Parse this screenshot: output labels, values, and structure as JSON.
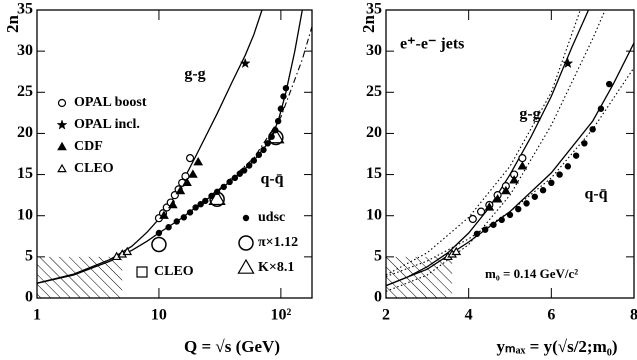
{
  "chart_data": [
    {
      "type": "scatter",
      "xscale": "log",
      "color": "#000000",
      "legend": true,
      "y_label": "2n",
      "x_label": "Q = √s (GeV)",
      "xlim": [
        1,
        180
      ],
      "ylim": [
        0,
        35
      ],
      "xticks": [
        1,
        10,
        {
          "value": 100,
          "label": "10²"
        }
      ],
      "yticks": [
        0,
        5,
        10,
        15,
        20,
        25,
        30,
        35
      ],
      "regions": [
        {
          "label": "CLEO",
          "x": [
            1,
            5
          ],
          "y": [
            0,
            5
          ]
        }
      ],
      "series": [
        {
          "name": "g-g",
          "line": "solid",
          "x": [
            1,
            2,
            4,
            6,
            8,
            10,
            12,
            15,
            20,
            30,
            40,
            51,
            60,
            70
          ],
          "values": [
            1.8,
            2.9,
            4.7,
            6.3,
            8,
            9.6,
            11.2,
            13.6,
            17.2,
            22.4,
            26.3,
            29.5,
            32,
            35
          ]
        },
        {
          "name": "q-q̄",
          "line": "solid",
          "x": [
            1,
            2,
            4,
            6,
            8,
            10,
            15,
            20,
            30,
            45,
            60,
            80,
            95,
            110,
            130,
            150
          ],
          "values": [
            1.8,
            2.8,
            4.5,
            5.8,
            6.9,
            7.9,
            9.6,
            11,
            12.9,
            15,
            16.7,
            19,
            21.5,
            25,
            30,
            35
          ]
        },
        {
          "line": "dashdot",
          "x": [
            30,
            60,
            100,
            150,
            180
          ],
          "values": [
            13,
            17,
            22,
            29,
            33
          ]
        },
        {
          "name": "OPAL boost",
          "marker": "circle-open",
          "x": [
            10,
            10.8,
            11.6,
            12.5,
            13.5,
            14.5,
            15.5,
            16.5,
            18
          ],
          "values": [
            9.7,
            10.3,
            11,
            11.6,
            12.5,
            13.2,
            14,
            14.8,
            17
          ]
        },
        {
          "name": "OPAL incl.",
          "marker": "star",
          "x": [
            51
          ],
          "values": [
            28.5
          ]
        },
        {
          "name": "CDF",
          "marker": "triangle",
          "x": [
            11,
            13,
            15,
            17,
            19,
            21
          ],
          "values": [
            10,
            11.3,
            13,
            14,
            15,
            16.5
          ]
        },
        {
          "name": "CLEO",
          "marker": "triangle-open",
          "x": [
            4.5,
            5,
            5.5
          ],
          "values": [
            5,
            5.3,
            5.6
          ]
        },
        {
          "name": "udsc",
          "marker": "dot",
          "x": [
            10,
            12,
            14,
            16,
            18,
            20,
            22,
            24,
            27,
            30,
            34,
            38,
            42,
            46,
            50,
            55,
            60,
            66,
            72,
            78,
            84,
            90,
            95,
            100,
            105,
            110
          ],
          "values": [
            7.9,
            8.6,
            9.3,
            9.8,
            10.4,
            11,
            11.4,
            11.8,
            12.4,
            12.9,
            13.5,
            14.1,
            14.6,
            15.1,
            15.5,
            16.1,
            16.7,
            17.4,
            18,
            18.8,
            19.6,
            20.4,
            21.5,
            23,
            24.5,
            25.5
          ]
        },
        {
          "name": "π×1.12",
          "marker": "circle-large",
          "x": [
            10,
            30,
            91
          ],
          "values": [
            6.5,
            12,
            19.5
          ]
        },
        {
          "name": "K×8.1",
          "marker": "triangle-large",
          "x": [
            30,
            91
          ],
          "values": [
            12,
            19.5
          ]
        }
      ]
    },
    {
      "type": "scatter",
      "color": "#000000",
      "legend": false,
      "y_label": "2n",
      "x_label": "yₘₐₓ = y(√s/2;m₀)",
      "annotations": [
        "e⁺-e⁻ jets",
        "m₀ = 0.14 GeV/c²"
      ],
      "xlim": [
        2,
        8
      ],
      "ylim": [
        0,
        35
      ],
      "xticks": [
        2,
        4,
        6,
        8
      ],
      "yticks": [
        0,
        5,
        10,
        15,
        20,
        25,
        30,
        35
      ],
      "regions": [
        {
          "x": [
            2,
            3.6
          ],
          "y": [
            0,
            5
          ]
        }
      ],
      "series": [
        {
          "name": "g-g",
          "line": "solid",
          "x": [
            2,
            2.5,
            3,
            3.5,
            4,
            4.5,
            5,
            5.5,
            6,
            6.5,
            6.9
          ],
          "values": [
            1.5,
            2.5,
            3.8,
            5.5,
            7.9,
            11,
            15,
            19.5,
            24.5,
            30.5,
            35
          ]
        },
        {
          "line": "dotted",
          "x": [
            2,
            3,
            4,
            5,
            6,
            6.7
          ],
          "values": [
            2.8,
            5.5,
            9.8,
            16,
            25,
            35
          ]
        },
        {
          "line": "dotted",
          "x": [
            2,
            3,
            4,
            5,
            6,
            7,
            7.3
          ],
          "values": [
            0.8,
            2.8,
            6.5,
            12.5,
            21,
            31.5,
            35
          ]
        },
        {
          "name": "q-q̄",
          "line": "solid",
          "x": [
            2,
            3,
            4,
            5,
            6,
            7,
            7.5,
            8
          ],
          "values": [
            1.5,
            3.5,
            6.8,
            10.5,
            15.2,
            21.5,
            26,
            31
          ]
        },
        {
          "line": "dotted",
          "x": [
            2,
            3,
            4,
            5,
            6,
            7,
            8
          ],
          "values": [
            2.6,
            4.5,
            7.2,
            10.5,
            14.6,
            20.5,
            28
          ]
        },
        {
          "marker": "circle-open",
          "x": [
            4.1,
            4.3,
            4.5,
            4.7,
            4.9,
            5.1,
            5.3
          ],
          "values": [
            9.6,
            10.5,
            11.3,
            12.5,
            13.6,
            15,
            17
          ]
        },
        {
          "marker": "star",
          "x": [
            6.4
          ],
          "values": [
            28.5
          ]
        },
        {
          "marker": "triangle",
          "x": [
            4.5,
            4.7,
            4.9,
            5.1,
            5.3
          ],
          "values": [
            11,
            12,
            13,
            14.3,
            16
          ]
        },
        {
          "marker": "triangle-open",
          "x": [
            3.5,
            3.6,
            3.7
          ],
          "values": [
            5,
            5.3,
            5.6
          ]
        },
        {
          "marker": "dot",
          "x": [
            4.2,
            4.4,
            4.6,
            4.8,
            5,
            5.2,
            5.4,
            5.6,
            5.8,
            6,
            6.2,
            6.4,
            6.6,
            6.8,
            7,
            7.2,
            7.4
          ],
          "values": [
            7.8,
            8.3,
            8.9,
            9.5,
            10.1,
            10.8,
            11.5,
            12.3,
            13.1,
            14,
            15,
            16,
            17.3,
            18.8,
            20.5,
            23,
            26
          ]
        }
      ]
    }
  ]
}
